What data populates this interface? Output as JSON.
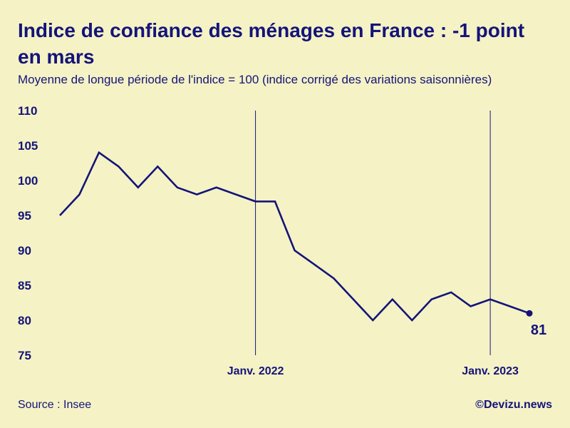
{
  "title": "Indice de confiance des ménages en France : -1 point en mars",
  "subtitle": "Moyenne de longue période de l'indice = 100 (indice corrigé des variations saisonnières)",
  "source": "Source : Insee",
  "credit": "©Devizu.news",
  "colors": {
    "background": "#f5f3c5",
    "line": "#14147a"
  },
  "chart_data": {
    "type": "line",
    "title": "Indice de confiance des ménages en France : -1 point en mars",
    "subtitle": "Moyenne de longue période de l'indice = 100 (indice corrigé des variations saisonnières)",
    "x": [
      "2021-03",
      "2021-04",
      "2021-05",
      "2021-06",
      "2021-07",
      "2021-08",
      "2021-09",
      "2021-10",
      "2021-11",
      "2021-12",
      "2022-01",
      "2022-02",
      "2022-03",
      "2022-04",
      "2022-05",
      "2022-06",
      "2022-07",
      "2022-08",
      "2022-09",
      "2022-10",
      "2022-11",
      "2022-12",
      "2023-01",
      "2023-02",
      "2023-03"
    ],
    "series": [
      {
        "values": [
          95,
          98,
          104,
          102,
          99,
          102,
          99,
          98,
          99,
          98,
          97,
          97,
          90,
          88,
          86,
          83,
          80,
          83,
          80,
          83,
          84,
          82,
          83,
          82,
          81
        ]
      }
    ],
    "ylim": [
      75,
      110
    ],
    "yticks": [
      "110",
      "105",
      "100",
      "95",
      "90",
      "85",
      "80",
      "75"
    ],
    "xtick_labels": [
      {
        "at": "2022-01",
        "label": "Janv. 2022"
      },
      {
        "at": "2023-01",
        "label": "Janv. 2023"
      }
    ],
    "end_label": "81",
    "xlabel": "",
    "ylabel": "",
    "grid": false,
    "legend": "none"
  }
}
